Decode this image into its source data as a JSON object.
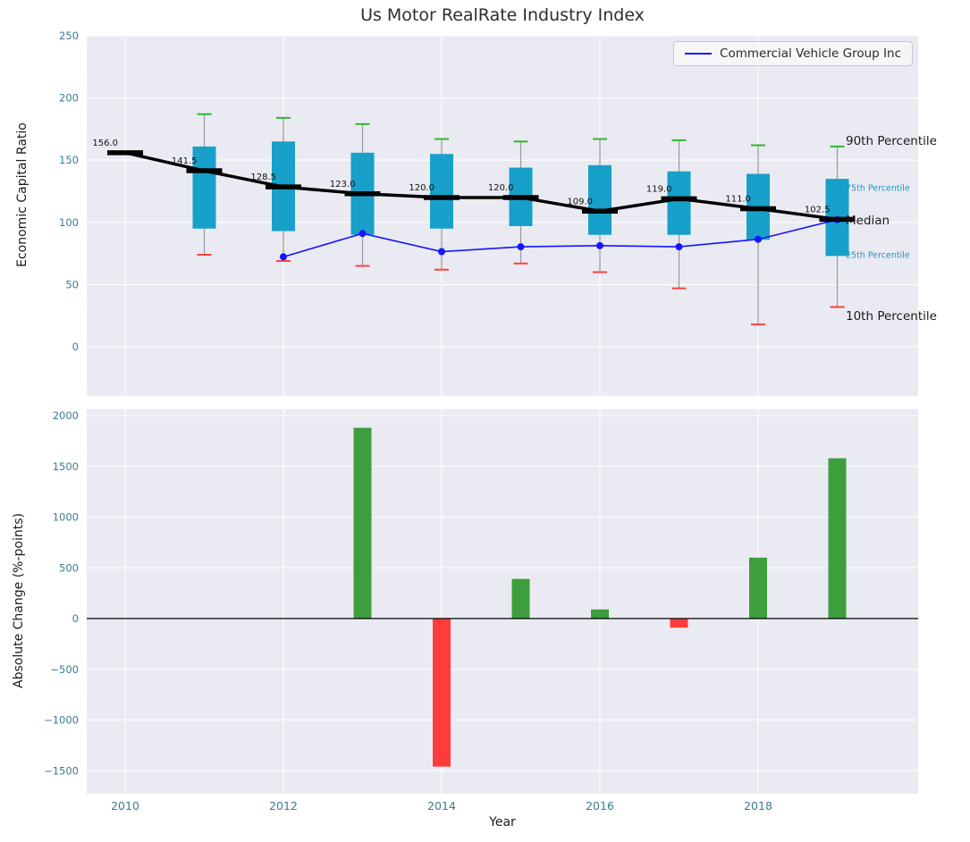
{
  "chart_data": [
    {
      "type": "boxplot+line",
      "title": "Us Motor RealRate Industry Index",
      "ylabel": "Economic Capital Ratio",
      "yticks": [
        250,
        200,
        150,
        100,
        50,
        0
      ],
      "ylim": [
        -39.5,
        250
      ],
      "grid": true,
      "legend_position": "upper right",
      "boxes": [
        {
          "year": 2010,
          "median": 156.0
        },
        {
          "year": 2011,
          "median": 141.5,
          "q1": 95,
          "q3": 161,
          "p10": 74,
          "p90": 187
        },
        {
          "year": 2012,
          "median": 128.5,
          "q1": 93,
          "q3": 165,
          "p10": 69,
          "p90": 184
        },
        {
          "year": 2013,
          "median": 123.0,
          "q1": 90,
          "q3": 156,
          "p10": 65,
          "p90": 179
        },
        {
          "year": 2014,
          "median": 120.0,
          "q1": 95,
          "q3": 155,
          "p10": 62,
          "p90": 167
        },
        {
          "year": 2015,
          "median": 120.0,
          "q1": 97,
          "q3": 144,
          "p10": 67,
          "p90": 165
        },
        {
          "year": 2016,
          "median": 109.0,
          "q1": 90,
          "q3": 146,
          "p10": 60,
          "p90": 167
        },
        {
          "year": 2017,
          "median": 119.0,
          "q1": 90,
          "q3": 141,
          "p10": 47,
          "p90": 166
        },
        {
          "year": 2018,
          "median": 111.0,
          "q1": 86,
          "q3": 139,
          "p10": 18,
          "p90": 162
        },
        {
          "year": 2019,
          "median": 102.5,
          "q1": 73,
          "q3": 135,
          "p10": 32,
          "p90": 161
        }
      ],
      "median_labels": [
        "156.0",
        "141.5",
        "128.5",
        "123.0",
        "120.0",
        "120.0",
        "109.0",
        "119.0",
        "111.0",
        "102.5"
      ],
      "series": [
        {
          "name": "Commercial Vehicle Group Inc",
          "color": "#1515ff",
          "x": [
            2012,
            2013,
            2014,
            2015,
            2016,
            2017,
            2018,
            2019
          ],
          "values": [
            72.3,
            91.1,
            76.5,
            80.4,
            81.3,
            80.4,
            86.4,
            102.2
          ]
        }
      ],
      "right_labels": [
        {
          "text": "90th Percentile",
          "value": 166,
          "size": "large",
          "color": "#1a1a1a"
        },
        {
          "text": "75th Percentile",
          "value": 129,
          "size": "small",
          "color": "#2596be"
        },
        {
          "text": "Median",
          "value": 102,
          "size": "large",
          "color": "#1a1a1a"
        },
        {
          "text": "25th Percentile",
          "value": 75,
          "size": "small",
          "color": "#2596be"
        },
        {
          "text": "10th Percentile",
          "value": 25,
          "size": "large",
          "color": "#1a1a1a"
        }
      ],
      "colors": {
        "box": "#17a0c9",
        "whisker": "#999999",
        "cap_top": "#2eb82e",
        "cap_bottom": "#ff4040",
        "median": "#000000",
        "panel_bg": "#eaeaf2",
        "grid": "#ffffff",
        "tick": "#3a7c8c"
      }
    },
    {
      "type": "bar",
      "ylabel": "Absolute Change (%-points)",
      "xlabel": "Year",
      "yticks": [
        2000,
        1500,
        1000,
        500,
        0,
        -500,
        -1000,
        -1500
      ],
      "xticks": [
        2010,
        2012,
        2014,
        2016,
        2018
      ],
      "categories": [
        2013,
        2014,
        2015,
        2016,
        2017,
        2018,
        2019
      ],
      "values": [
        1880,
        -1460,
        390,
        90,
        -90,
        600,
        1580
      ],
      "ylim": [
        -1727,
        2062
      ],
      "colors": {
        "positive": "#3d9e3d",
        "negative": "#ff3b3b",
        "panel_bg": "#eaeaf2",
        "grid": "#ffffff",
        "tick": "#3a7c8c",
        "zero_line": "#000000"
      }
    }
  ]
}
